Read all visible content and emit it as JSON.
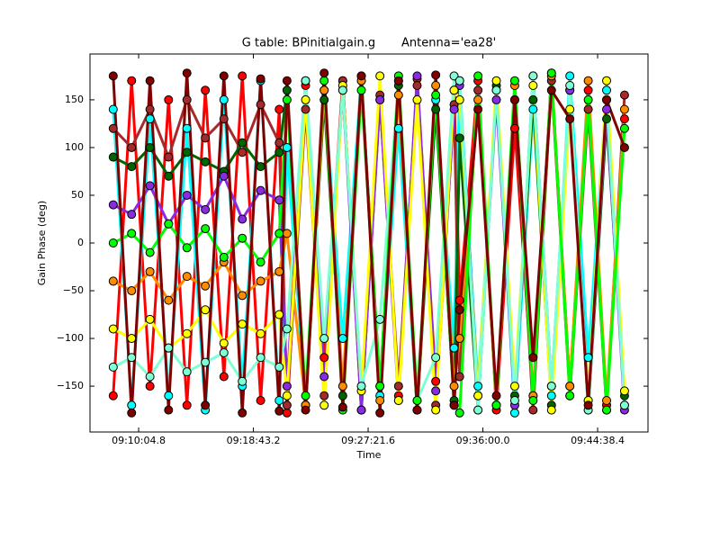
{
  "chart_data": {
    "type": "scatter",
    "title": "G table: BPinitialgain.g       Antenna='ea28'",
    "xlabel": "Time",
    "ylabel": "Gain Phase (deg)",
    "x": [
      32890,
      32973,
      33056,
      33140,
      33223,
      33306,
      33390,
      33473,
      33556,
      33640,
      33675,
      33759,
      33843,
      33927,
      34011,
      34095,
      34179,
      34263,
      34347,
      34430,
      34455,
      34538,
      34621,
      34704,
      34787,
      34870,
      34953,
      35036,
      35119,
      35200
    ],
    "xlim": [
      32785,
      35306
    ],
    "xticks": [
      {
        "value": 33004.8,
        "label": "09:10:04.8"
      },
      {
        "value": 33523.2,
        "label": "09:18:43.2"
      },
      {
        "value": 34041.6,
        "label": "09:27:21.6"
      },
      {
        "value": 34560.0,
        "label": "09:36:00.0"
      },
      {
        "value": 35078.4,
        "label": "09:44:38.4"
      }
    ],
    "ylim": [
      -198,
      198
    ],
    "yticks": [
      {
        "value": -150,
        "label": "−150"
      },
      {
        "value": -100,
        "label": "−100"
      },
      {
        "value": -50,
        "label": "−50"
      },
      0,
      50,
      100,
      150
    ],
    "series": [
      {
        "color": "#ff0000",
        "values": [
          -160,
          170,
          -150,
          150,
          -170,
          160,
          -140,
          175,
          -165,
          140,
          -178,
          165,
          -120,
          170,
          -175,
          150,
          -160,
          172,
          -145,
          160,
          -60,
          170,
          -175,
          120,
          -160,
          178,
          -150,
          160,
          -170,
          130
        ]
      },
      {
        "color": "#00ffff",
        "values": [
          140,
          -170,
          130,
          -160,
          120,
          -175,
          150,
          -150,
          170,
          -165,
          100,
          -170,
          160,
          -100,
          175,
          -160,
          120,
          -175,
          150,
          -110,
          170,
          -150,
          160,
          -178,
          140,
          -160,
          175,
          -120,
          160,
          -170
        ]
      },
      {
        "color": "#a52a2a",
        "values": [
          120,
          100,
          140,
          90,
          150,
          110,
          130,
          95,
          145,
          105,
          -170,
          140,
          -160,
          170,
          -175,
          155,
          -150,
          165,
          -170,
          145,
          -140,
          160,
          -170,
          150,
          -175,
          170,
          -160,
          140,
          -175,
          155
        ]
      },
      {
        "color": "#006400",
        "values": [
          90,
          80,
          100,
          70,
          95,
          85,
          75,
          105,
          80,
          95,
          160,
          -170,
          150,
          -160,
          170,
          -150,
          165,
          -175,
          140,
          -165,
          110,
          -175,
          165,
          -160,
          150,
          -170,
          160,
          -175,
          130,
          -160
        ]
      },
      {
        "color": "#8a2be2",
        "values": [
          40,
          30,
          60,
          20,
          50,
          35,
          70,
          25,
          55,
          45,
          -150,
          170,
          -140,
          160,
          -175,
          150,
          -165,
          175,
          -155,
          140,
          165,
          -160,
          150,
          -170,
          175,
          -150,
          160,
          -165,
          140,
          -175
        ]
      },
      {
        "color": "#ff8c00",
        "values": [
          -40,
          -50,
          -30,
          -60,
          -35,
          -45,
          -20,
          -55,
          -40,
          -30,
          10,
          -170,
          160,
          -150,
          170,
          -165,
          155,
          -175,
          165,
          -150,
          -100,
          150,
          -170,
          165,
          -160,
          175,
          -150,
          170,
          -165,
          140
        ]
      },
      {
        "color": "#ffff00",
        "values": [
          -90,
          -100,
          -80,
          -110,
          -95,
          -70,
          -105,
          -85,
          -95,
          -75,
          -160,
          150,
          -170,
          165,
          -155,
          175,
          -165,
          150,
          -175,
          160,
          150,
          -160,
          170,
          -150,
          165,
          -175,
          140,
          -165,
          170,
          -155
        ]
      },
      {
        "color": "#7fffd4",
        "values": [
          -130,
          -120,
          -140,
          -110,
          -135,
          -125,
          -115,
          -145,
          -120,
          -130,
          -90,
          170,
          -100,
          160,
          -150,
          -80,
          170,
          -165,
          -120,
          175,
          170,
          -175,
          160,
          -165,
          175,
          -150,
          165,
          -175,
          150,
          -170
        ]
      },
      {
        "color": "#00ff00",
        "values": [
          0,
          10,
          -10,
          20,
          -5,
          15,
          -15,
          5,
          -20,
          10,
          150,
          -160,
          170,
          -175,
          160,
          -150,
          175,
          -165,
          155,
          -170,
          -178,
          175,
          -170,
          170,
          -165,
          178,
          -160,
          150,
          -175,
          120
        ]
      },
      {
        "color": "#800000",
        "values": [
          175,
          -178,
          170,
          -175,
          178,
          -170,
          175,
          -178,
          172,
          -176,
          170,
          -175,
          178,
          -172,
          175,
          -178,
          170,
          -175,
          176,
          -170,
          -70,
          140,
          -160,
          150,
          -120,
          160,
          130,
          -170,
          150,
          100
        ]
      }
    ]
  }
}
